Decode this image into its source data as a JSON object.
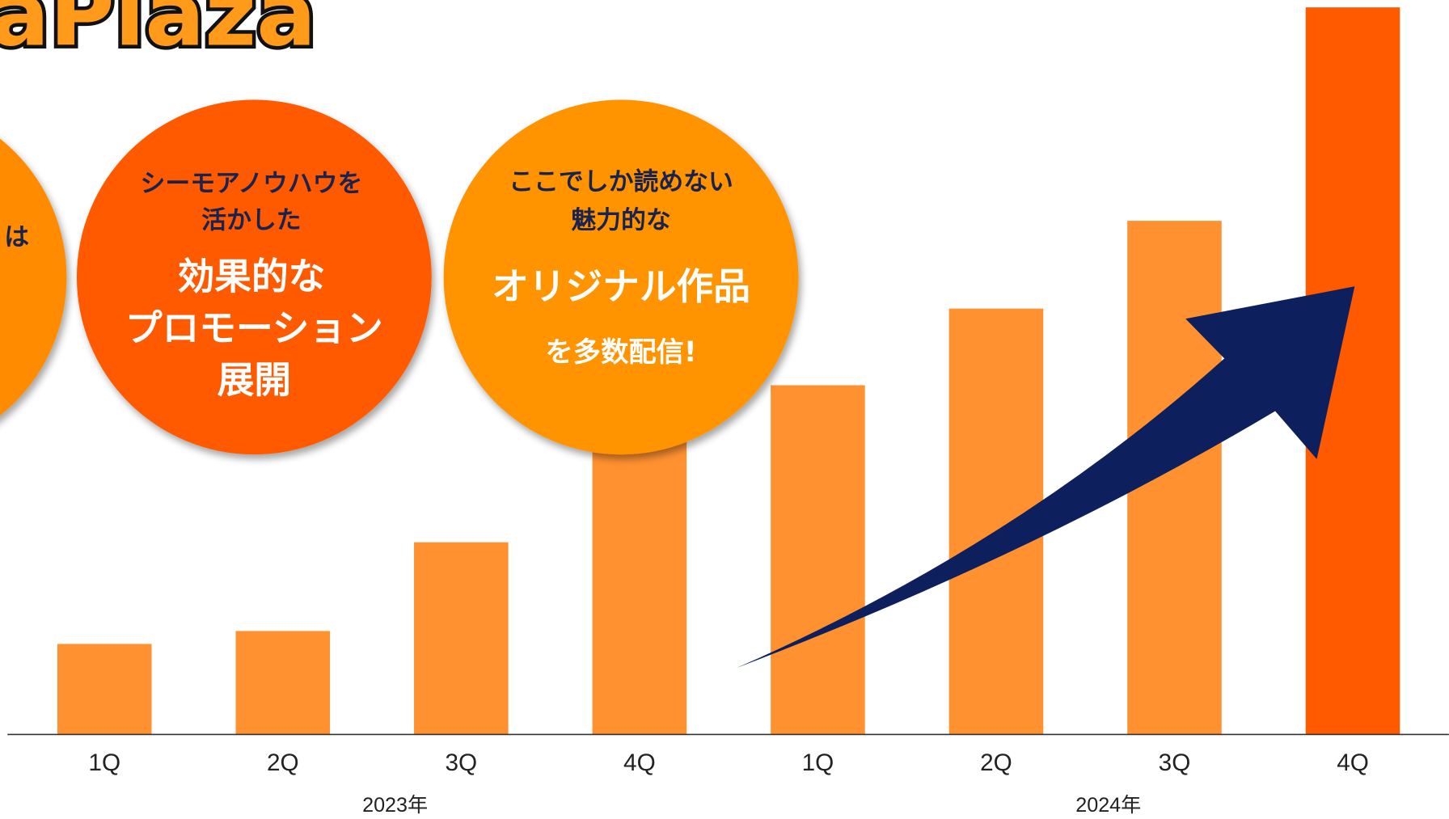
{
  "logo": "gaPlaza",
  "circles": [
    {
      "lines": [
        "は"
      ]
    },
    {
      "lines": [
        "シーモアノウハウを",
        "活かした",
        "効果的な",
        "プロモーション",
        "展開"
      ]
    },
    {
      "lines": [
        "ここでしか読めない",
        "魅力的な",
        "オリジナル作品",
        "を多数配信!"
      ]
    }
  ],
  "chart_data": {
    "type": "bar",
    "categories": [
      "1Q",
      "2Q",
      "3Q",
      "4Q",
      "1Q",
      "2Q",
      "3Q",
      "4Q"
    ],
    "groups": [
      {
        "label": "2023年",
        "span": [
          0,
          3
        ]
      },
      {
        "label": "2024年",
        "span": [
          4,
          7
        ]
      }
    ],
    "values": [
      98,
      112,
      208,
      325,
      378,
      461,
      556,
      787
    ],
    "colors": [
      "#ff9130",
      "#ff9130",
      "#ff9130",
      "#ff9130",
      "#ff9130",
      "#ff9130",
      "#ff9130",
      "#ff5a00"
    ],
    "ylim": [
      0,
      787
    ]
  }
}
